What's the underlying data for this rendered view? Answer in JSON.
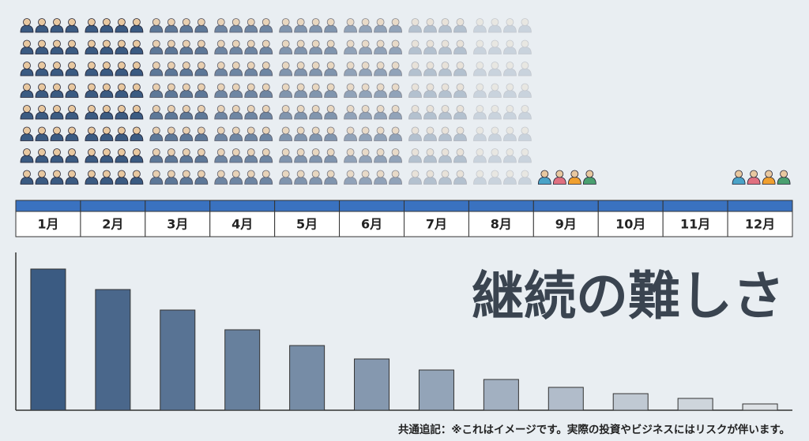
{
  "chart_data": {
    "type": "bar",
    "title": "継続の難しさ",
    "footnote": "共通追記：※これはイメージです。実際の投資やビジネスにはリスクが伴います。",
    "categories": [
      "1月",
      "2月",
      "3月",
      "4月",
      "5月",
      "6月",
      "7月",
      "8月",
      "9月",
      "10月",
      "11月",
      "12月"
    ],
    "values": [
      179,
      153,
      127,
      102,
      82,
      65,
      51,
      39,
      29,
      21,
      15,
      8
    ],
    "icon_counts": [
      32,
      32,
      32,
      32,
      32,
      32,
      32,
      32,
      4,
      0,
      0,
      4
    ],
    "color": "#3b5b82",
    "header_color": "#3a72c0",
    "ylim": [
      0,
      200
    ]
  }
}
